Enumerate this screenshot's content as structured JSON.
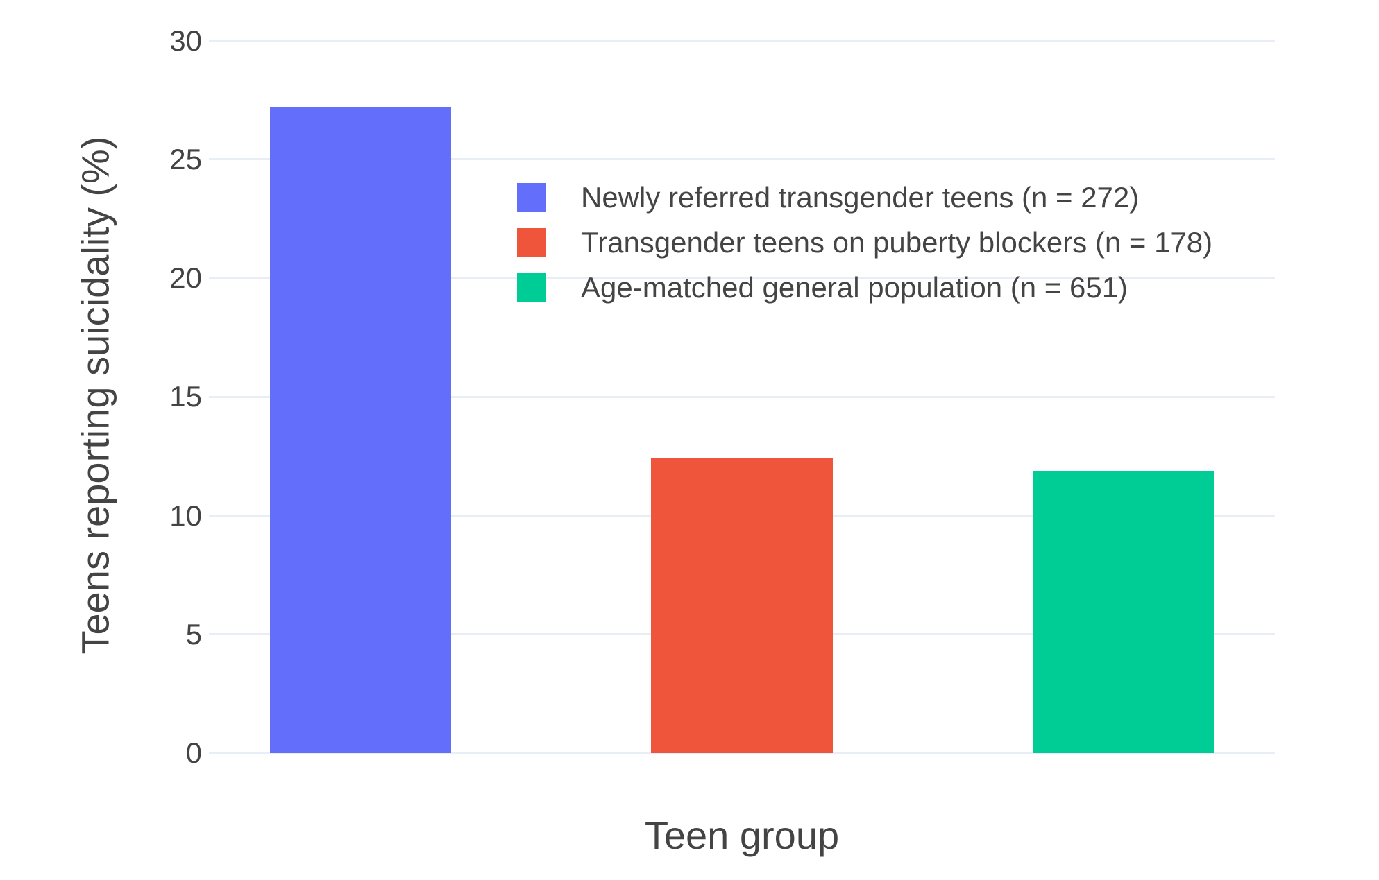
{
  "chart_data": {
    "type": "bar",
    "title": "",
    "xlabel": "Teen group",
    "ylabel": "Teens reporting suicidality (%)",
    "ylim": [
      0,
      30.4
    ],
    "yticks": [
      0,
      5,
      10,
      15,
      20,
      25,
      30
    ],
    "grid": true,
    "legend_position": "inside-top-right",
    "categories": [
      "Newly referred transgender teens",
      "Transgender teens on puberty blockers",
      "Age-matched general population"
    ],
    "series": [
      {
        "name": "Newly referred transgender teens (n = 272)",
        "value": 27.2,
        "color": "#636EFA"
      },
      {
        "name": "Transgender teens on puberty blockers (n = 178)",
        "value": 12.4,
        "color": "#EF553B"
      },
      {
        "name": "Age-matched general population (n = 651)",
        "value": 11.9,
        "color": "#00CC96"
      }
    ]
  },
  "colors": {
    "background": "#FFFFFF",
    "gridline": "#E9EDF5",
    "text": "#444444"
  }
}
